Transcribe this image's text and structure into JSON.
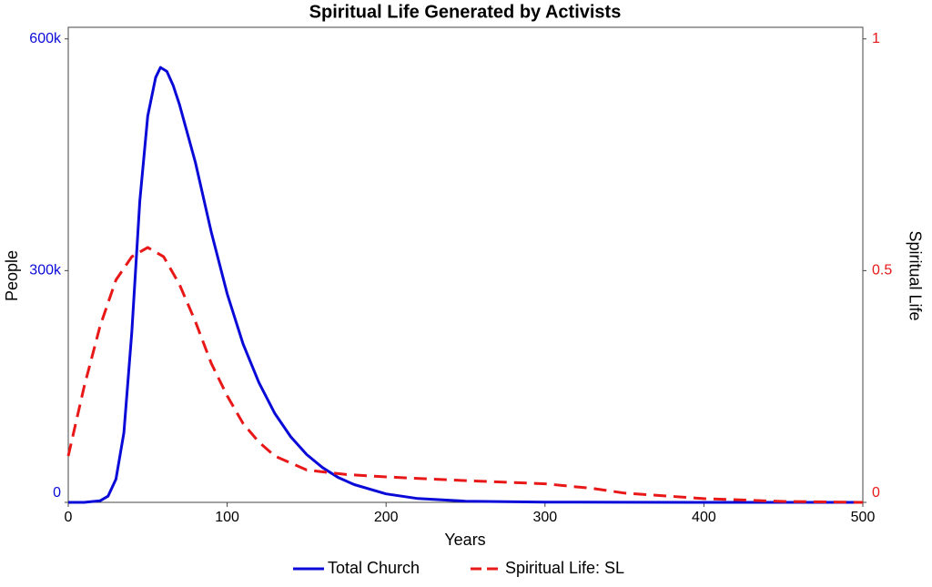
{
  "chart_data": {
    "type": "line",
    "title": "Spiritual Life Generated by Activists",
    "xlabel": "Years",
    "ylabel": "People",
    "y2label": "Spiritual Life",
    "xlim": [
      0,
      500
    ],
    "xticks": [
      0,
      100,
      200,
      300,
      400,
      500
    ],
    "ylim": [
      0,
      615000
    ],
    "yticks": [
      0,
      {
        "value": 300000,
        "label": "300k"
      },
      {
        "value": 600000,
        "label": "600k"
      }
    ],
    "y2lim": [
      0,
      1.025
    ],
    "y2ticks": [
      0,
      0.5,
      1
    ],
    "series": [
      {
        "name": "Total Church",
        "color": "#0a0ad8",
        "axis": "y",
        "dash": false,
        "x": [
          0,
          10,
          20,
          25,
          30,
          35,
          40,
          45,
          50,
          55,
          58,
          62,
          66,
          70,
          80,
          90,
          100,
          110,
          120,
          130,
          140,
          150,
          160,
          170,
          180,
          200,
          220,
          250,
          300,
          350,
          400,
          500
        ],
        "values": [
          0,
          0,
          2000,
          8000,
          30000,
          90000,
          220000,
          390000,
          500000,
          550000,
          563000,
          558000,
          540000,
          515000,
          440000,
          350000,
          270000,
          205000,
          155000,
          115000,
          85000,
          62000,
          45000,
          32000,
          23000,
          11000,
          5000,
          1500,
          400,
          100,
          0,
          0
        ]
      },
      {
        "name": "Spiritual Life: SL",
        "color": "#e81818",
        "axis": "y2",
        "dash": true,
        "x": [
          0,
          10,
          20,
          30,
          40,
          50,
          60,
          70,
          80,
          90,
          100,
          110,
          120,
          130,
          150,
          175,
          200,
          250,
          300,
          330,
          350,
          400,
          450,
          500
        ],
        "values": [
          0.1,
          0.25,
          0.38,
          0.48,
          0.53,
          0.55,
          0.53,
          0.47,
          0.39,
          0.3,
          0.23,
          0.17,
          0.13,
          0.1,
          0.07,
          0.06,
          0.055,
          0.047,
          0.04,
          0.03,
          0.02,
          0.008,
          0.002,
          0
        ]
      }
    ]
  }
}
